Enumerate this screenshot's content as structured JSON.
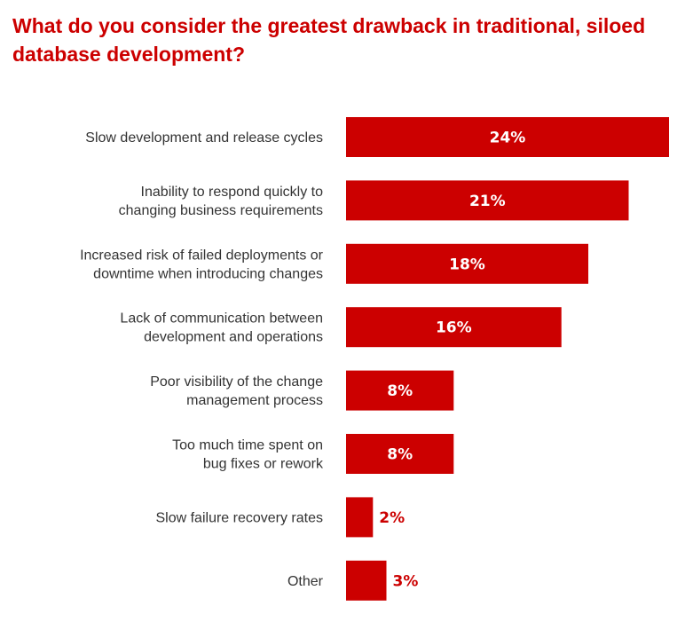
{
  "chart_data": {
    "type": "bar",
    "orientation": "horizontal",
    "title": "What do you consider the greatest drawback in traditional, siloed database development?",
    "categories": [
      [
        "Slow development and release cycles"
      ],
      [
        "Inability to respond quickly to",
        "changing business requirements"
      ],
      [
        "Increased risk of failed deployments or",
        "downtime when introducing changes"
      ],
      [
        "Lack of communication between",
        "development and operations"
      ],
      [
        "Poor visibility of the change",
        "management process"
      ],
      [
        "Too much time spent on",
        "bug fixes or rework"
      ],
      [
        "Slow failure recovery rates"
      ],
      [
        "Other"
      ]
    ],
    "values": [
      24,
      21,
      18,
      16,
      8,
      8,
      2,
      3
    ],
    "value_labels": [
      "24%",
      "21%",
      "18%",
      "16%",
      "8%",
      "8%",
      "2%",
      "3%"
    ],
    "unit": "%",
    "xlim": [
      0,
      24
    ],
    "grid": false,
    "legend": "none",
    "colors": {
      "bar": "#cc0000",
      "title": "#cc0000",
      "label_inside": "#ffffff",
      "label_outside": "#cc0000",
      "category_text": "#333333"
    }
  }
}
